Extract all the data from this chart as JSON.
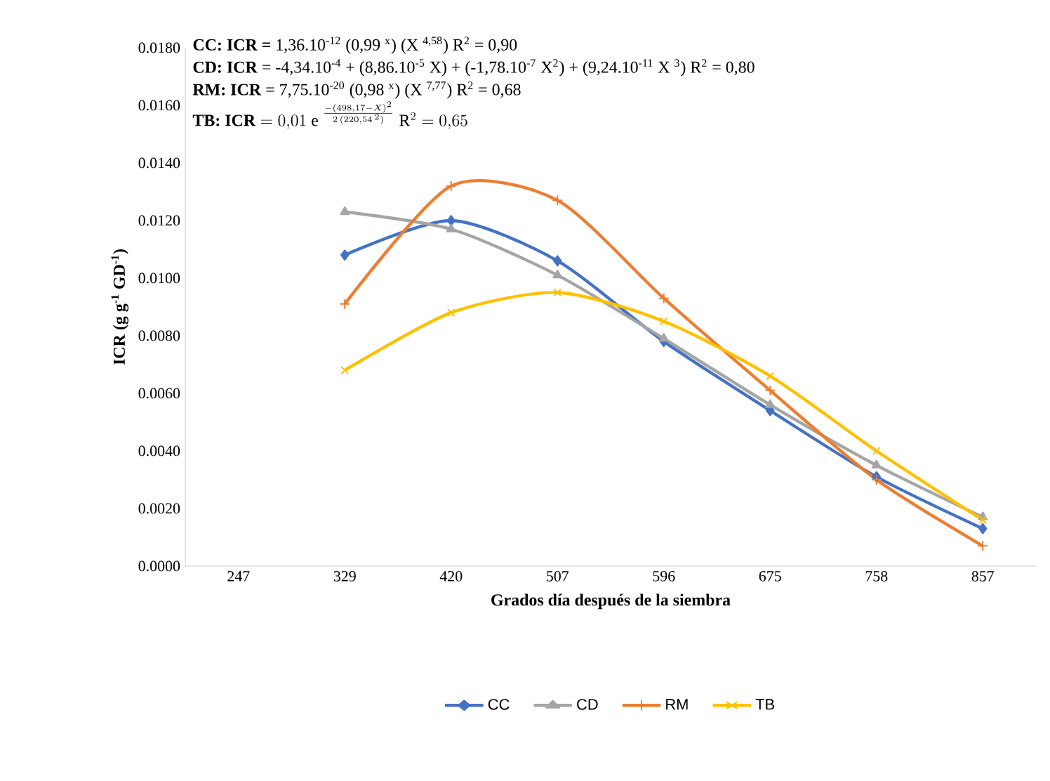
{
  "chart_data": {
    "type": "line",
    "xlabel": "Grados día después de la siembra",
    "ylabel": "ICR (g g$^{-1}$ GD$^{-1}$)",
    "categories": [
      "247",
      "329",
      "420",
      "507",
      "596",
      "675",
      "758",
      "857"
    ],
    "series": [
      {
        "name": "CC",
        "color": "#4472c4",
        "marker": "diamond",
        "values": [
          null,
          0.0108,
          0.012,
          0.0106,
          0.0078,
          0.0054,
          0.0031,
          0.0013
        ]
      },
      {
        "name": "CD",
        "color": "#a5a5a5",
        "marker": "triangle",
        "values": [
          null,
          0.0123,
          0.0117,
          0.0101,
          0.0079,
          0.0056,
          0.0035,
          0.0017
        ]
      },
      {
        "name": "RM",
        "color": "#ed7d31",
        "marker": "cross",
        "values": [
          null,
          0.0091,
          0.0132,
          0.0127,
          0.0093,
          0.0061,
          0.003,
          0.0007
        ]
      },
      {
        "name": "TB",
        "color": "#ffc000",
        "marker": "x",
        "values": [
          null,
          0.0068,
          0.0088,
          0.0095,
          0.0085,
          0.0066,
          0.004,
          0.0016
        ]
      }
    ],
    "ylim": [
      0,
      0.018
    ],
    "yticks": [
      {
        "value": 0,
        "label": "0.0000"
      },
      {
        "value": 0.002,
        "label": "0.0020"
      },
      {
        "value": 0.004,
        "label": "0.0040"
      },
      {
        "value": 0.006,
        "label": "0.0060"
      },
      {
        "value": 0.008,
        "label": "0.0080"
      },
      {
        "value": 0.01,
        "label": "0.0100"
      },
      {
        "value": 0.012,
        "label": "0.0120"
      },
      {
        "value": 0.014,
        "label": "0.0140"
      },
      {
        "value": 0.016,
        "label": "0.0160"
      },
      {
        "value": 0.018,
        "label": "0.0180"
      }
    ],
    "legend": "bottom",
    "grid": false,
    "annotations": [
      "**CC: ICR =** 1,36.10$^{-12}$ (0,99 $^{x}$) (X $^{4,58}$) R$^{2}$ = 0,90",
      "**CD: ICR** = -4,34.10$^{-4}$ + (8,86.10$^{-5}$ X) + (-1,78.10$^{-7}$ X$^{2}$) + (9,24.10$^{-11}$ X $^{3}$) R$^{2}$ = 0,80",
      "**RM: ICR** = 7,75.10$^{-20}$ (0,98 $^{x}$) (X $^{7,77}$) R$^{2}$ = 0,68",
      "\\textbf{TB: ICR} = 0{,}01\\ \\mathrm{e}\\ ^{\\frac{-(498{,}17-X)^{2}}{2\\,(220{,}54^{\\,2})}}\\ \\mathrm{R}^{2} = 0{,}65"
    ]
  }
}
